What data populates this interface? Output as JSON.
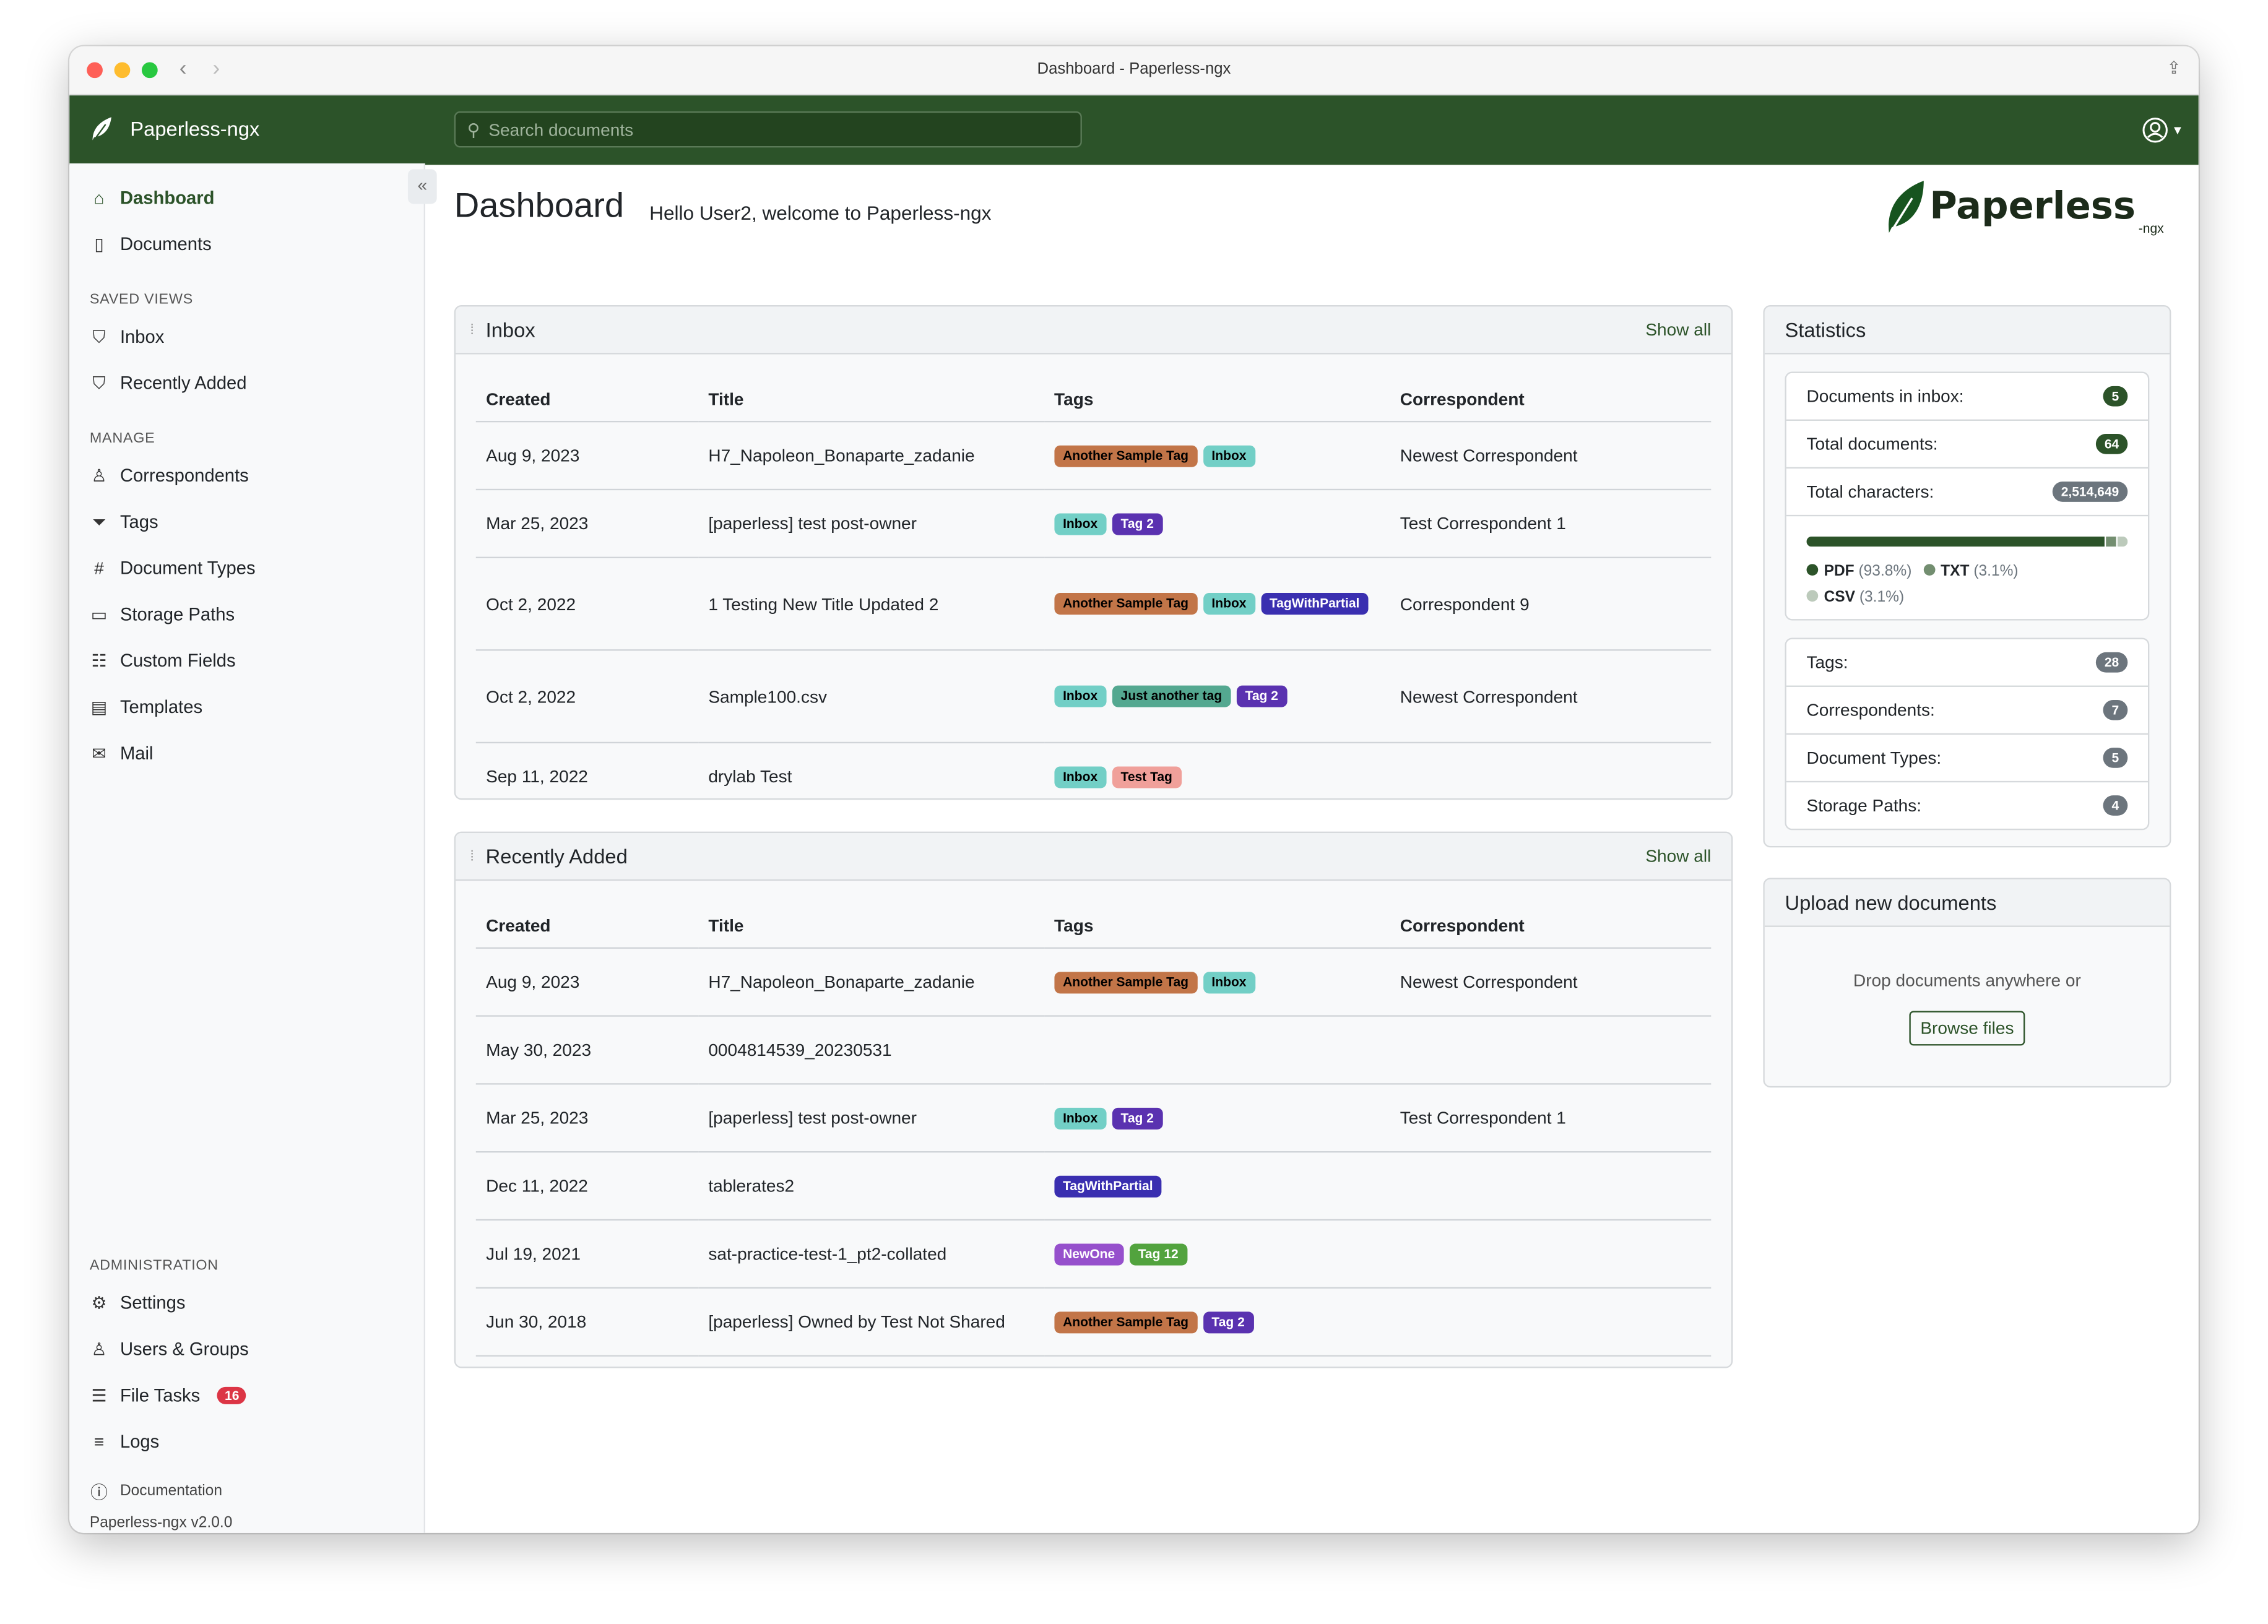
{
  "window": {
    "title": "Dashboard - Paperless-ngx"
  },
  "navbar": {
    "brand": "Paperless-ngx",
    "search_placeholder": "Search documents",
    "color": "#2c5329"
  },
  "sidebar": {
    "main": [
      {
        "label": "Dashboard",
        "icon": "house-icon",
        "active": true
      },
      {
        "label": "Documents",
        "icon": "files-icon"
      }
    ],
    "saved_views_heading": "SAVED VIEWS",
    "saved_views": [
      {
        "label": "Inbox",
        "icon": "funnel-icon"
      },
      {
        "label": "Recently Added",
        "icon": "funnel-icon"
      }
    ],
    "manage_heading": "MANAGE",
    "manage": [
      {
        "label": "Correspondents",
        "icon": "person-icon"
      },
      {
        "label": "Tags",
        "icon": "tags-icon"
      },
      {
        "label": "Document Types",
        "icon": "hash-icon"
      },
      {
        "label": "Storage Paths",
        "icon": "folder-icon"
      },
      {
        "label": "Custom Fields",
        "icon": "ui-radios-icon"
      },
      {
        "label": "Templates",
        "icon": "file-text-icon"
      },
      {
        "label": "Mail",
        "icon": "envelope-icon"
      }
    ],
    "admin_heading": "ADMINISTRATION",
    "admin": [
      {
        "label": "Settings",
        "icon": "gear-icon"
      },
      {
        "label": "Users & Groups",
        "icon": "people-icon"
      },
      {
        "label": "File Tasks",
        "icon": "list-task-icon",
        "badge": "16"
      },
      {
        "label": "Logs",
        "icon": "text-left-icon"
      }
    ],
    "documentation": "Documentation",
    "version": "Paperless-ngx v2.0.0"
  },
  "main": {
    "title": "Dashboard",
    "greeting": "Hello User2, welcome to Paperless-ngx",
    "logo_text": "Paperless",
    "logo_sub": "-ngx"
  },
  "tag_colors": {
    "Another Sample Tag": [
      "#c27548",
      "#000"
    ],
    "Inbox": [
      "#72cfc6",
      "#000"
    ],
    "Tag 2": [
      "#5a32b0",
      "#fff"
    ],
    "TagWithPartial": [
      "#3a2fb0",
      "#fff"
    ],
    "Just another tag": [
      "#54a890",
      "#000"
    ],
    "Test Tag": [
      "#f0a09a",
      "#000"
    ],
    "NewOne": [
      "#9650cc",
      "#fff"
    ],
    "Tag 12": [
      "#52a33e",
      "#fff"
    ]
  },
  "inbox": {
    "title": "Inbox",
    "show_all": "Show all",
    "columns": [
      "Created",
      "Title",
      "Tags",
      "Correspondent"
    ],
    "rows": [
      {
        "created": "Aug 9, 2023",
        "title": "H7_Napoleon_Bonaparte_zadanie",
        "tags": [
          "Another Sample Tag",
          "Inbox"
        ],
        "correspondent": "Newest Correspondent"
      },
      {
        "created": "Mar 25, 2023",
        "title": "[paperless] test post-owner",
        "tags": [
          "Inbox",
          "Tag 2"
        ],
        "correspondent": "Test Correspondent 1"
      },
      {
        "created": "Oct 2, 2022",
        "title": "1 Testing New Title Updated 2",
        "tags": [
          "Another Sample Tag",
          "Inbox",
          "TagWithPartial"
        ],
        "correspondent": "Correspondent 9"
      },
      {
        "created": "Oct 2, 2022",
        "title": "Sample100.csv",
        "tags": [
          "Inbox",
          "Just another tag",
          "Tag 2"
        ],
        "correspondent": "Newest Correspondent"
      },
      {
        "created": "Sep 11, 2022",
        "title": "drylab Test",
        "tags": [
          "Inbox",
          "Test Tag"
        ],
        "correspondent": ""
      }
    ]
  },
  "recent": {
    "title": "Recently Added",
    "show_all": "Show all",
    "columns": [
      "Created",
      "Title",
      "Tags",
      "Correspondent"
    ],
    "rows": [
      {
        "created": "Aug 9, 2023",
        "title": "H7_Napoleon_Bonaparte_zadanie",
        "tags": [
          "Another Sample Tag",
          "Inbox"
        ],
        "correspondent": "Newest Correspondent"
      },
      {
        "created": "May 30, 2023",
        "title": "0004814539_20230531",
        "tags": [],
        "correspondent": ""
      },
      {
        "created": "Mar 25, 2023",
        "title": "[paperless] test post-owner",
        "tags": [
          "Inbox",
          "Tag 2"
        ],
        "correspondent": "Test Correspondent 1"
      },
      {
        "created": "Dec 11, 2022",
        "title": "tablerates2",
        "tags": [
          "TagWithPartial"
        ],
        "correspondent": ""
      },
      {
        "created": "Jul 19, 2021",
        "title": "sat-practice-test-1_pt2-collated",
        "tags": [
          "NewOne",
          "Tag 12"
        ],
        "correspondent": ""
      },
      {
        "created": "Jun 30, 2018",
        "title": "[paperless] Owned by Test Not Shared",
        "tags": [
          "Another Sample Tag",
          "Tag 2"
        ],
        "correspondent": ""
      }
    ]
  },
  "statistics": {
    "title": "Statistics",
    "top": [
      {
        "label": "Documents in inbox:",
        "value": "5",
        "color": "#2c5329"
      },
      {
        "label": "Total documents:",
        "value": "64",
        "color": "#2c5329"
      },
      {
        "label": "Total characters:",
        "value": "2,514,649",
        "color": "#6c757d"
      }
    ],
    "filetypes": [
      {
        "name": "PDF",
        "pct_label": "(93.8%)",
        "percent": 93.8,
        "color": "#2c5329"
      },
      {
        "name": "TXT",
        "pct_label": "(3.1%)",
        "percent": 3.1,
        "color": "#738e70"
      },
      {
        "name": "CSV",
        "pct_label": "(3.1%)",
        "percent": 3.1,
        "color": "#bccabb"
      }
    ],
    "bottom": [
      {
        "label": "Tags:",
        "value": "28"
      },
      {
        "label": "Correspondents:",
        "value": "7"
      },
      {
        "label": "Document Types:",
        "value": "5"
      },
      {
        "label": "Storage Paths:",
        "value": "4"
      }
    ]
  },
  "upload": {
    "title": "Upload new documents",
    "hint": "Drop documents anywhere or",
    "button": "Browse files"
  }
}
